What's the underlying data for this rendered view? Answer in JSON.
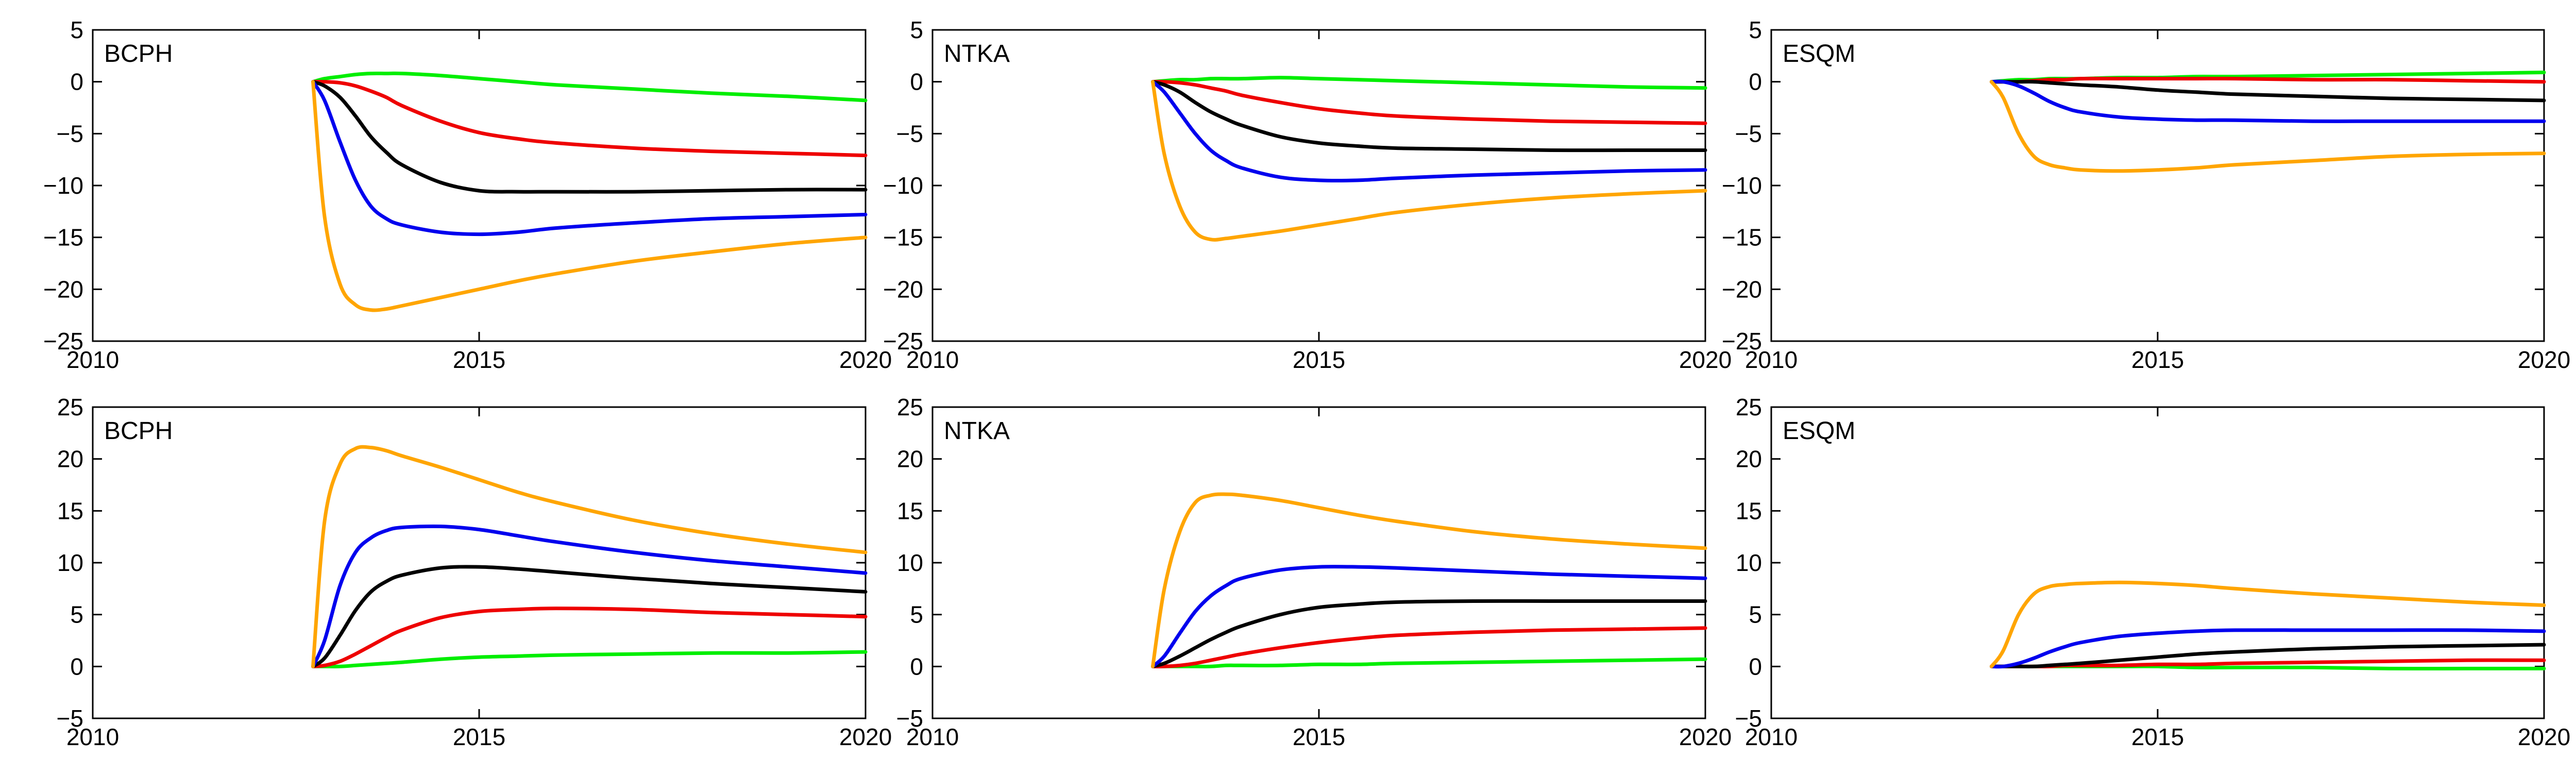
{
  "chart_data": [
    {
      "type": "line",
      "title": "BCPH",
      "xlim": [
        2010,
        2020
      ],
      "ylim": [
        -25,
        5
      ],
      "xticks": [
        2010,
        2015,
        2020
      ],
      "yticks": [
        5,
        0,
        -5,
        -10,
        -15,
        -20,
        -25
      ],
      "x": [
        2012.85,
        2013.0,
        2013.2,
        2013.4,
        2013.6,
        2013.8,
        2014.0,
        2014.5,
        2015.0,
        2015.5,
        2016.0,
        2017.0,
        2018.0,
        2019.0,
        2020.0
      ],
      "series": [
        {
          "color": "#00ee00",
          "values": [
            0,
            0.3,
            0.5,
            0.7,
            0.8,
            0.8,
            0.8,
            0.6,
            0.3,
            0,
            -0.3,
            -0.7,
            -1.1,
            -1.4,
            -1.8
          ]
        },
        {
          "color": "#ee0000",
          "values": [
            0,
            0,
            -0.1,
            -0.4,
            -0.9,
            -1.5,
            -2.3,
            -3.8,
            -4.9,
            -5.5,
            -5.9,
            -6.4,
            -6.7,
            -6.9,
            -7.1
          ]
        },
        {
          "color": "#000000",
          "values": [
            0,
            -0.4,
            -1.5,
            -3.3,
            -5.3,
            -6.8,
            -8.0,
            -9.7,
            -10.5,
            -10.6,
            -10.6,
            -10.6,
            -10.5,
            -10.4,
            -10.4
          ]
        },
        {
          "color": "#0000ee",
          "values": [
            0,
            -1.8,
            -5.8,
            -9.5,
            -12.0,
            -13.2,
            -13.8,
            -14.5,
            -14.7,
            -14.5,
            -14.1,
            -13.6,
            -13.2,
            -13.0,
            -12.8
          ]
        },
        {
          "color": "#ffa500",
          "values": [
            0,
            -13,
            -19.5,
            -21.5,
            -22,
            -21.9,
            -21.6,
            -20.8,
            -20.0,
            -19.2,
            -18.5,
            -17.3,
            -16.4,
            -15.6,
            -15.0
          ]
        }
      ]
    },
    {
      "type": "line",
      "title": "NTKA",
      "xlim": [
        2010,
        2020
      ],
      "ylim": [
        -25,
        5
      ],
      "xticks": [
        2010,
        2015,
        2020
      ],
      "yticks": [
        5,
        0,
        -5,
        -10,
        -15,
        -20,
        -25
      ],
      "x": [
        2012.85,
        2013.0,
        2013.2,
        2013.4,
        2013.6,
        2013.8,
        2014.0,
        2014.5,
        2015.0,
        2015.5,
        2016.0,
        2017.0,
        2018.0,
        2019.0,
        2020.0
      ],
      "series": [
        {
          "color": "#00ee00",
          "values": [
            0,
            0.1,
            0.2,
            0.2,
            0.3,
            0.3,
            0.3,
            0.4,
            0.3,
            0.2,
            0.1,
            -0.1,
            -0.3,
            -0.5,
            -0.6
          ]
        },
        {
          "color": "#ee0000",
          "values": [
            0,
            0,
            -0.1,
            -0.3,
            -0.6,
            -0.9,
            -1.3,
            -2.0,
            -2.6,
            -3.0,
            -3.3,
            -3.6,
            -3.8,
            -3.9,
            -4.0
          ]
        },
        {
          "color": "#000000",
          "values": [
            0,
            -0.3,
            -1.0,
            -2.0,
            -2.9,
            -3.6,
            -4.2,
            -5.3,
            -5.9,
            -6.2,
            -6.4,
            -6.5,
            -6.6,
            -6.6,
            -6.6
          ]
        },
        {
          "color": "#0000ee",
          "values": [
            0,
            -1.0,
            -3.0,
            -5.0,
            -6.6,
            -7.6,
            -8.3,
            -9.2,
            -9.5,
            -9.5,
            -9.3,
            -9.0,
            -8.8,
            -8.6,
            -8.5
          ]
        },
        {
          "color": "#ffa500",
          "values": [
            0,
            -7,
            -12,
            -14.5,
            -15.2,
            -15.1,
            -14.9,
            -14.4,
            -13.8,
            -13.2,
            -12.6,
            -11.8,
            -11.2,
            -10.8,
            -10.5
          ]
        }
      ]
    },
    {
      "type": "line",
      "title": "ESQM",
      "xlim": [
        2010,
        2020
      ],
      "ylim": [
        -25,
        5
      ],
      "xticks": [
        2010,
        2015,
        2020
      ],
      "yticks": [
        5,
        0,
        -5,
        -10,
        -15,
        -20,
        -25
      ],
      "x": [
        2012.85,
        2013.0,
        2013.2,
        2013.4,
        2013.6,
        2013.8,
        2014.0,
        2014.5,
        2015.0,
        2015.5,
        2016.0,
        2017.0,
        2018.0,
        2019.0,
        2020.0
      ],
      "series": [
        {
          "color": "#00ee00",
          "values": [
            0,
            0.1,
            0.2,
            0.2,
            0.3,
            0.3,
            0.3,
            0.4,
            0.4,
            0.5,
            0.5,
            0.6,
            0.7,
            0.8,
            0.9
          ]
        },
        {
          "color": "#ee0000",
          "values": [
            0,
            0,
            0,
            0.1,
            0.2,
            0.2,
            0.3,
            0.3,
            0.3,
            0.3,
            0.3,
            0.2,
            0.2,
            0.1,
            0
          ]
        },
        {
          "color": "#000000",
          "values": [
            0,
            0,
            0,
            0,
            -0.1,
            -0.2,
            -0.3,
            -0.5,
            -0.8,
            -1.0,
            -1.2,
            -1.4,
            -1.6,
            -1.7,
            -1.8
          ]
        },
        {
          "color": "#0000ee",
          "values": [
            0,
            0,
            -0.4,
            -1.1,
            -1.9,
            -2.5,
            -2.9,
            -3.4,
            -3.6,
            -3.7,
            -3.7,
            -3.8,
            -3.8,
            -3.8,
            -3.8
          ]
        },
        {
          "color": "#ffa500",
          "values": [
            0,
            -1.5,
            -5.0,
            -7.2,
            -8.0,
            -8.3,
            -8.5,
            -8.6,
            -8.5,
            -8.3,
            -8.0,
            -7.6,
            -7.2,
            -7.0,
            -6.9
          ]
        }
      ]
    },
    {
      "type": "line",
      "title": "BCPH",
      "xlim": [
        2010,
        2020
      ],
      "ylim": [
        -5,
        25
      ],
      "xticks": [
        2010,
        2015,
        2020
      ],
      "yticks": [
        25,
        20,
        15,
        10,
        5,
        0,
        -5
      ],
      "x": [
        2012.85,
        2013.0,
        2013.2,
        2013.4,
        2013.6,
        2013.8,
        2014.0,
        2014.5,
        2015.0,
        2015.5,
        2016.0,
        2017.0,
        2018.0,
        2019.0,
        2020.0
      ],
      "series": [
        {
          "color": "#00ee00",
          "values": [
            0,
            0,
            0,
            0.1,
            0.2,
            0.3,
            0.4,
            0.7,
            0.9,
            1.0,
            1.1,
            1.2,
            1.3,
            1.3,
            1.4
          ]
        },
        {
          "color": "#ee0000",
          "values": [
            0,
            0.1,
            0.5,
            1.2,
            2.0,
            2.8,
            3.5,
            4.7,
            5.3,
            5.5,
            5.6,
            5.5,
            5.2,
            5.0,
            4.8
          ]
        },
        {
          "color": "#000000",
          "values": [
            0,
            0.8,
            3.0,
            5.4,
            7.2,
            8.2,
            8.8,
            9.5,
            9.6,
            9.4,
            9.1,
            8.5,
            8.0,
            7.6,
            7.2
          ]
        },
        {
          "color": "#0000ee",
          "values": [
            0,
            2.5,
            7.8,
            11.0,
            12.4,
            13.1,
            13.4,
            13.5,
            13.2,
            12.6,
            12.0,
            11.0,
            10.2,
            9.6,
            9.0
          ]
        },
        {
          "color": "#ffa500",
          "values": [
            0,
            14,
            19.5,
            21.0,
            21.1,
            20.8,
            20.3,
            19.2,
            18.0,
            16.8,
            15.8,
            14.1,
            12.8,
            11.8,
            11.0
          ]
        }
      ]
    },
    {
      "type": "line",
      "title": "NTKA",
      "xlim": [
        2010,
        2020
      ],
      "ylim": [
        -5,
        25
      ],
      "xticks": [
        2010,
        2015,
        2020
      ],
      "yticks": [
        25,
        20,
        15,
        10,
        5,
        0,
        -5
      ],
      "x": [
        2012.85,
        2013.0,
        2013.2,
        2013.4,
        2013.6,
        2013.8,
        2014.0,
        2014.5,
        2015.0,
        2015.5,
        2016.0,
        2017.0,
        2018.0,
        2019.0,
        2020.0
      ],
      "series": [
        {
          "color": "#00ee00",
          "values": [
            0,
            0,
            0,
            0,
            0,
            0.1,
            0.1,
            0.1,
            0.2,
            0.2,
            0.3,
            0.4,
            0.5,
            0.6,
            0.7
          ]
        },
        {
          "color": "#ee0000",
          "values": [
            0,
            0,
            0.1,
            0.3,
            0.6,
            0.9,
            1.2,
            1.8,
            2.3,
            2.7,
            3.0,
            3.3,
            3.5,
            3.6,
            3.7
          ]
        },
        {
          "color": "#000000",
          "values": [
            0,
            0.3,
            1.0,
            1.8,
            2.6,
            3.3,
            3.9,
            5.0,
            5.7,
            6.0,
            6.2,
            6.3,
            6.3,
            6.3,
            6.3
          ]
        },
        {
          "color": "#0000ee",
          "values": [
            0,
            1.0,
            3.2,
            5.3,
            6.8,
            7.8,
            8.5,
            9.3,
            9.6,
            9.6,
            9.5,
            9.2,
            8.9,
            8.7,
            8.5
          ]
        },
        {
          "color": "#ffa500",
          "values": [
            0,
            7.5,
            13,
            15.8,
            16.5,
            16.6,
            16.5,
            16.0,
            15.3,
            14.6,
            14.0,
            13.0,
            12.3,
            11.8,
            11.4
          ]
        }
      ]
    },
    {
      "type": "line",
      "title": "ESQM",
      "xlim": [
        2010,
        2020
      ],
      "ylim": [
        -5,
        25
      ],
      "xticks": [
        2010,
        2015,
        2020
      ],
      "yticks": [
        25,
        20,
        15,
        10,
        5,
        0,
        -5
      ],
      "x": [
        2012.85,
        2013.0,
        2013.2,
        2013.4,
        2013.6,
        2013.8,
        2014.0,
        2014.5,
        2015.0,
        2015.5,
        2016.0,
        2017.0,
        2018.0,
        2019.0,
        2020.0
      ],
      "series": [
        {
          "color": "#00ee00",
          "values": [
            0,
            0,
            0,
            0,
            0,
            0,
            0,
            0,
            0,
            -0.1,
            -0.1,
            -0.1,
            -0.2,
            -0.2,
            -0.2
          ]
        },
        {
          "color": "#ee0000",
          "values": [
            0,
            0,
            0,
            0,
            0,
            0.1,
            0.1,
            0.1,
            0.2,
            0.2,
            0.3,
            0.4,
            0.5,
            0.6,
            0.6
          ]
        },
        {
          "color": "#000000",
          "values": [
            0,
            0,
            0,
            0,
            0.1,
            0.2,
            0.3,
            0.6,
            0.9,
            1.2,
            1.4,
            1.7,
            1.9,
            2.0,
            2.1
          ]
        },
        {
          "color": "#0000ee",
          "values": [
            0,
            0,
            0.3,
            0.8,
            1.4,
            1.9,
            2.3,
            2.9,
            3.2,
            3.4,
            3.5,
            3.5,
            3.5,
            3.5,
            3.4
          ]
        },
        {
          "color": "#ffa500",
          "values": [
            0,
            1.5,
            5.0,
            7.0,
            7.7,
            7.9,
            8.0,
            8.1,
            8.0,
            7.8,
            7.5,
            7.0,
            6.6,
            6.2,
            5.9
          ]
        }
      ]
    }
  ]
}
